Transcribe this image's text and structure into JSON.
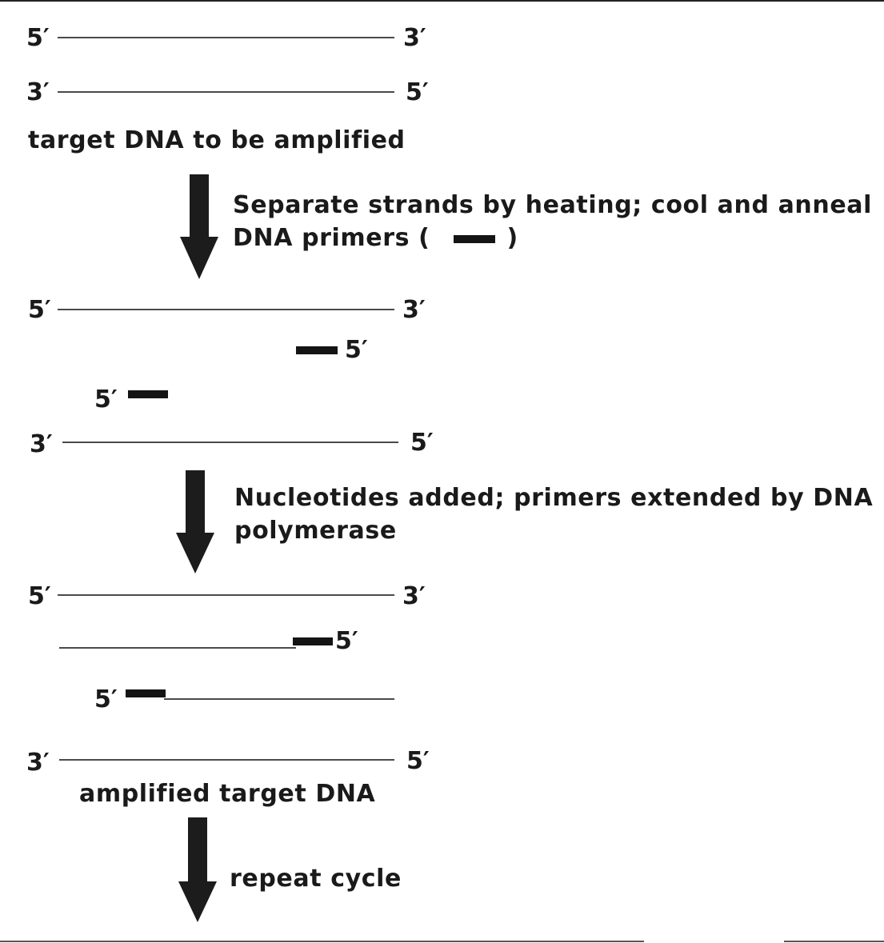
{
  "ends": {
    "five": "5′",
    "three": "3′"
  },
  "labels": {
    "target": "target DNA to be amplified",
    "amplified": "amplified target DNA"
  },
  "steps": {
    "step1_line1": "Separate strands by heating; cool and anneal",
    "step1_line2_prefix": "DNA primers (",
    "step1_line2_suffix": ")",
    "step2_line1": "Nucleotides added; primers extended by DNA",
    "step2_line2": "polymerase",
    "step3": "repeat cycle"
  },
  "colors": {
    "strand": "#4a4a4a",
    "primer": "#141414",
    "arrow": "#1c1c1c"
  }
}
